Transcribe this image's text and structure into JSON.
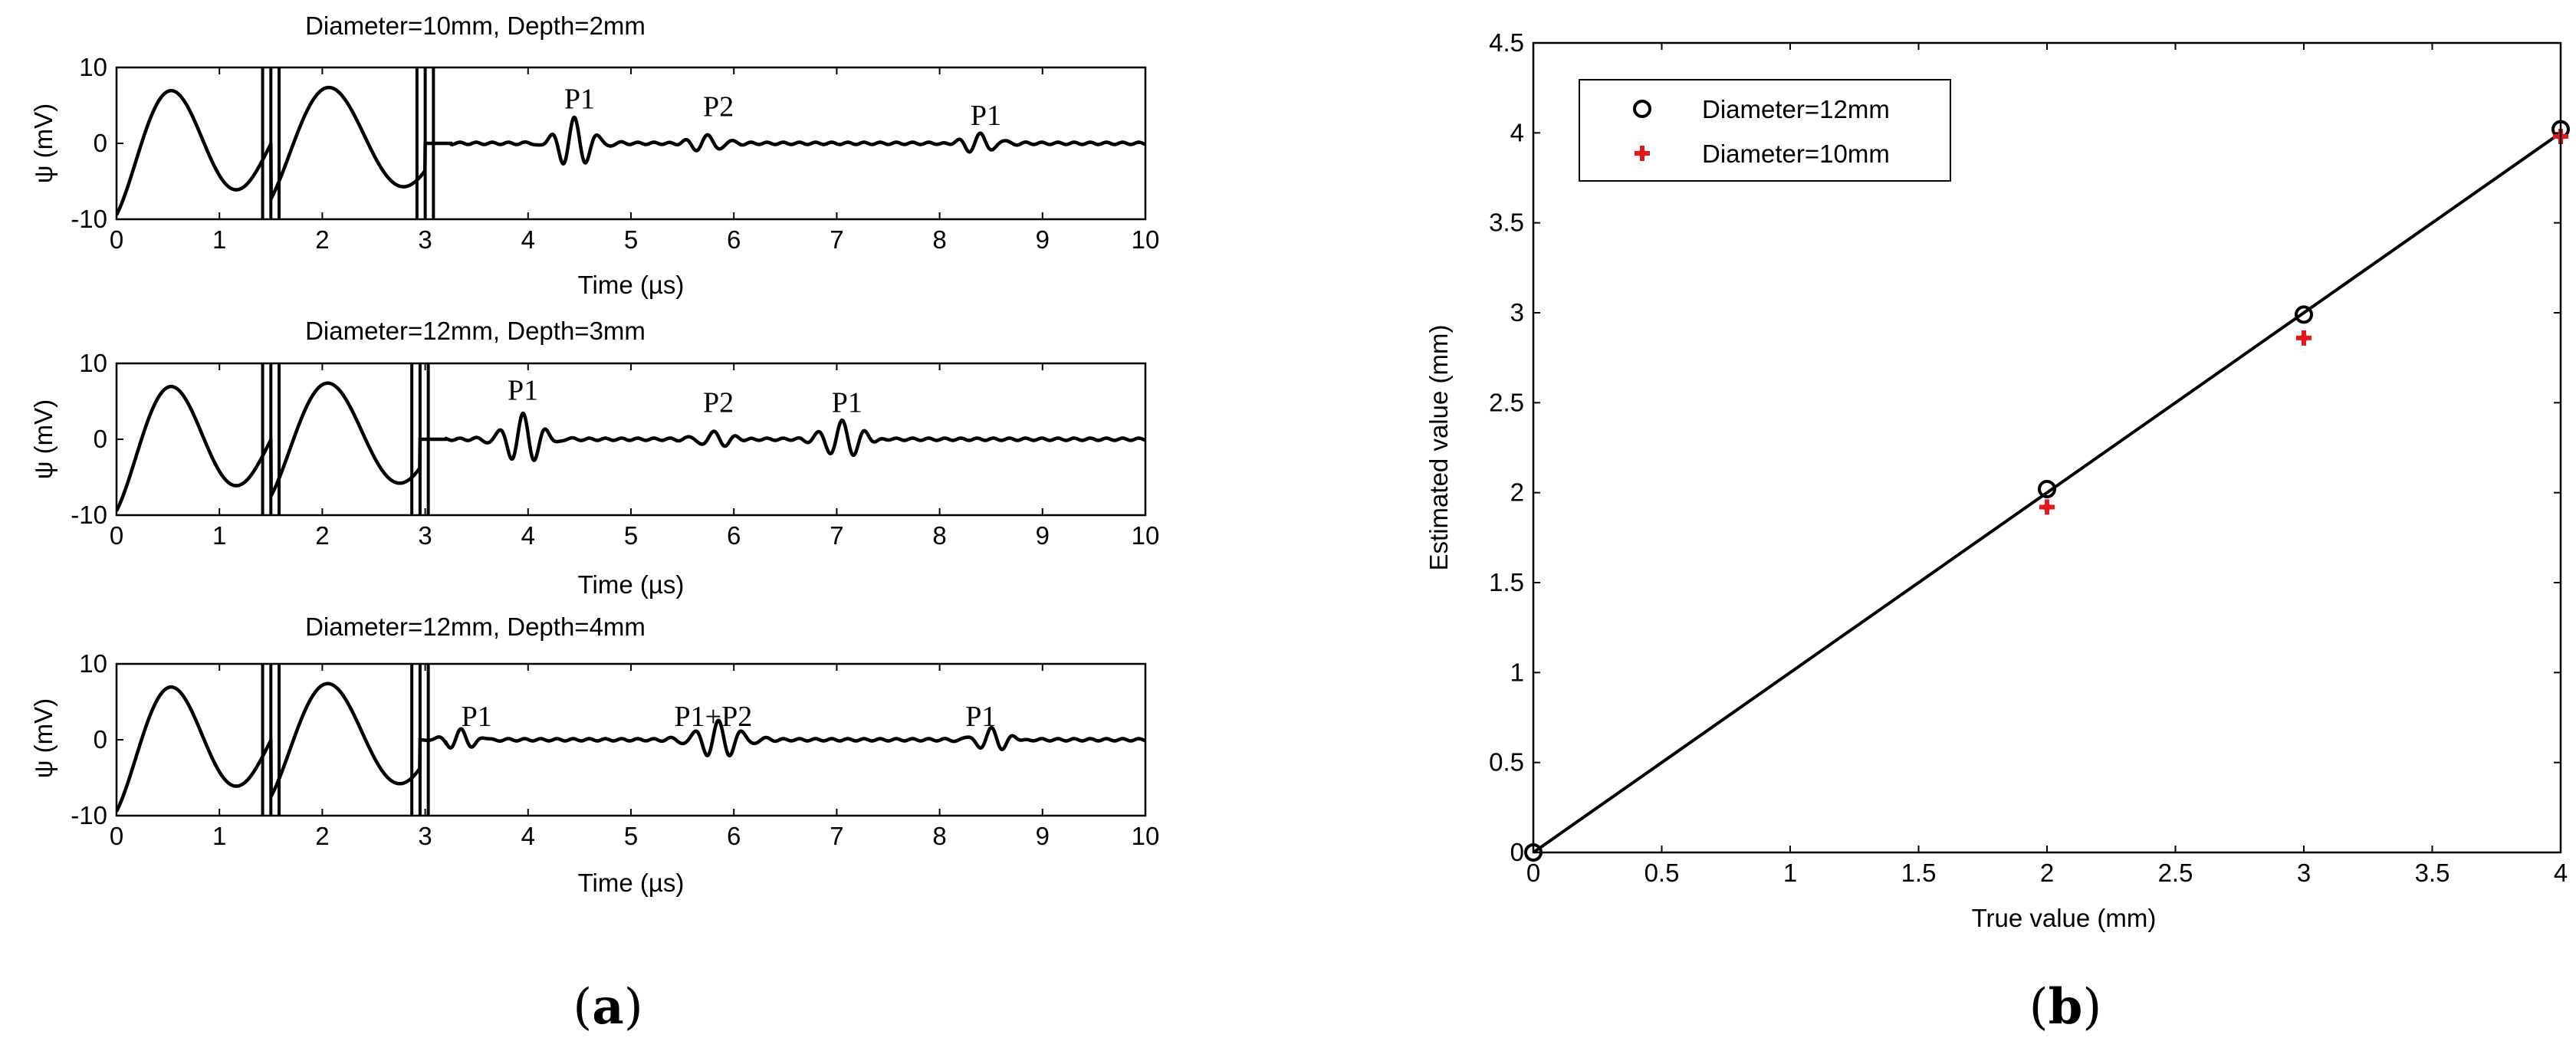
{
  "panels": {
    "a": {
      "label_open": "(",
      "label_letter": "a",
      "label_close": ")"
    },
    "b": {
      "label_open": "(",
      "label_letter": "b",
      "label_close": ")"
    }
  },
  "chart_data": [
    {
      "type": "line",
      "title": "Diameter=10mm, Depth=2mm",
      "xlabel": "Time (µs)",
      "ylabel": "ψ (mV)",
      "xlim": [
        0,
        10
      ],
      "ylim": [
        -10,
        10
      ],
      "xticks": [
        0,
        1,
        2,
        3,
        4,
        5,
        6,
        7,
        8,
        9,
        10
      ],
      "yticks": [
        -10,
        0,
        10
      ],
      "grid": false,
      "excitation_times": [
        1.5,
        3.0
      ],
      "echoes": [
        {
          "center": 4.45,
          "amplitude": 3.3,
          "width": 0.16
        },
        {
          "center": 5.75,
          "amplitude": 1.2,
          "width": 0.14
        },
        {
          "center": 8.4,
          "amplitude": 1.3,
          "width": 0.15
        }
      ],
      "annotations": [
        {
          "text": "P1",
          "x": 4.5,
          "y": 4.6
        },
        {
          "text": "P2",
          "x": 5.85,
          "y": 3.6
        },
        {
          "text": "P1",
          "x": 8.45,
          "y": 2.4
        }
      ]
    },
    {
      "type": "line",
      "title": "Diameter=12mm, Depth=3mm",
      "xlabel": "Time (µs)",
      "ylabel": "ψ (mV)",
      "xlim": [
        0,
        10
      ],
      "ylim": [
        -10,
        10
      ],
      "xticks": [
        0,
        1,
        2,
        3,
        4,
        5,
        6,
        7,
        8,
        9,
        10
      ],
      "yticks": [
        -10,
        0,
        10
      ],
      "grid": false,
      "excitation_times": [
        1.5,
        2.95
      ],
      "echoes": [
        {
          "center": 3.95,
          "amplitude": 3.3,
          "width": 0.17
        },
        {
          "center": 5.8,
          "amplitude": 1.1,
          "width": 0.14
        },
        {
          "center": 7.05,
          "amplitude": 2.6,
          "width": 0.16
        }
      ],
      "annotations": [
        {
          "text": "P1",
          "x": 3.95,
          "y": 5.2
        },
        {
          "text": "P2",
          "x": 5.85,
          "y": 3.6
        },
        {
          "text": "P1",
          "x": 7.1,
          "y": 3.6
        }
      ]
    },
    {
      "type": "line",
      "title": "Diameter=12mm, Depth=4mm",
      "xlabel": "Time (µs)",
      "ylabel": "ψ (mV)",
      "xlim": [
        0,
        10
      ],
      "ylim": [
        -10,
        10
      ],
      "xticks": [
        0,
        1,
        2,
        3,
        4,
        5,
        6,
        7,
        8,
        9,
        10
      ],
      "yticks": [
        -10,
        0,
        10
      ],
      "grid": false,
      "excitation_times": [
        1.5,
        2.95
      ],
      "echoes": [
        {
          "center": 3.35,
          "amplitude": 1.3,
          "width": 0.14
        },
        {
          "center": 5.85,
          "amplitude": 2.4,
          "width": 0.2
        },
        {
          "center": 8.5,
          "amplitude": 1.5,
          "width": 0.15
        }
      ],
      "annotations": [
        {
          "text": "P1",
          "x": 3.5,
          "y": 1.8
        },
        {
          "text": "P1+P2",
          "x": 5.8,
          "y": 1.8
        },
        {
          "text": "P1",
          "x": 8.4,
          "y": 1.8
        }
      ]
    },
    {
      "type": "scatter",
      "title": "",
      "xlabel": "True value (mm)",
      "ylabel": "Estimated value (mm)",
      "xlim": [
        0,
        4
      ],
      "ylim": [
        0,
        4.5
      ],
      "xticks": [
        0,
        0.5,
        1,
        1.5,
        2,
        2.5,
        3,
        3.5,
        4
      ],
      "yticks": [
        0,
        0.5,
        1,
        1.5,
        2,
        2.5,
        3,
        3.5,
        4,
        4.5
      ],
      "grid": false,
      "legend_position": "top-left",
      "series": [
        {
          "name": "Diameter=12mm",
          "marker": "circle",
          "color": "#000000",
          "x": [
            0,
            2,
            3,
            4
          ],
          "y": [
            0.0,
            2.02,
            2.99,
            4.02
          ]
        },
        {
          "name": "Diameter=10mm",
          "marker": "star",
          "color": "#e31a1c",
          "x": [
            2,
            3,
            4
          ],
          "y": [
            1.92,
            2.86,
            3.98
          ]
        }
      ],
      "reference_line": {
        "x": [
          0,
          4
        ],
        "y": [
          0,
          4
        ],
        "color": "#000000"
      }
    }
  ]
}
